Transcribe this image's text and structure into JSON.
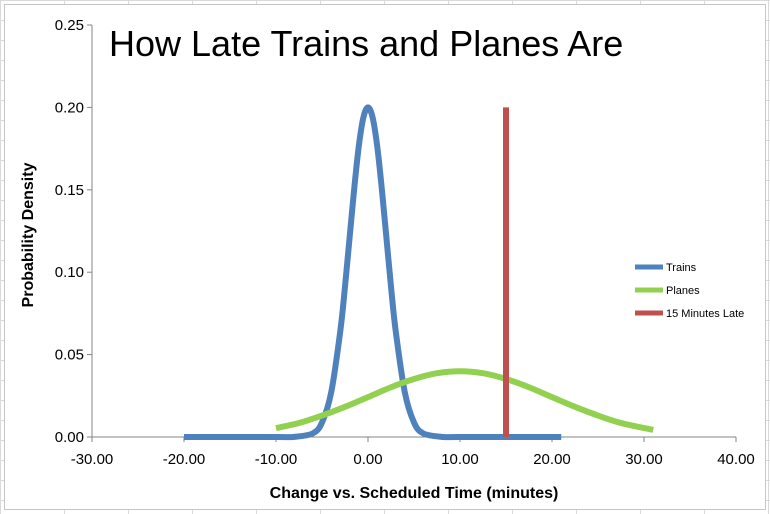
{
  "chart_data": {
    "type": "line",
    "title": "How Late Trains and Planes Are",
    "xlabel": "Change vs. Scheduled Time (minutes)",
    "ylabel": "Probability Density",
    "xlim": [
      -30,
      40
    ],
    "ylim": [
      0,
      0.25
    ],
    "x_ticks": [
      -30,
      -20,
      -10,
      0,
      10,
      20,
      30,
      40
    ],
    "x_tick_labels": [
      "-30.00",
      "-20.00",
      "-10.00",
      "0.00",
      "10.00",
      "20.00",
      "30.00",
      "40.00"
    ],
    "y_ticks": [
      0,
      0.05,
      0.1,
      0.15,
      0.2,
      0.25
    ],
    "y_tick_labels": [
      "0.00",
      "0.05",
      "0.10",
      "0.15",
      "0.20",
      "0.25"
    ],
    "grid": false,
    "legend_position": "right",
    "series": [
      {
        "name": "Trains",
        "color": "#4f81bd",
        "x": [
          -20,
          -10,
          -8,
          -6,
          -5,
          -4,
          -3,
          -2.5,
          -2,
          -1.5,
          -1,
          -0.5,
          0,
          0.5,
          1,
          1.5,
          2,
          2.5,
          3,
          4,
          5,
          6,
          8,
          10,
          21
        ],
        "y": [
          0,
          0,
          0.0001,
          0.0022,
          0.0088,
          0.0271,
          0.0648,
          0.0913,
          0.121,
          0.1506,
          0.1765,
          0.1939,
          0.2,
          0.1939,
          0.1765,
          0.1506,
          0.121,
          0.0913,
          0.0648,
          0.0271,
          0.0088,
          0.0022,
          0.0001,
          0,
          0
        ]
      },
      {
        "name": "Planes",
        "color": "#92d050",
        "x": [
          -10,
          -7.5,
          -5,
          -2.5,
          0,
          2.5,
          5,
          7.5,
          10,
          12.5,
          15,
          17.5,
          20,
          22.5,
          25,
          27.5,
          31
        ],
        "y": [
          0.0054,
          0.0085,
          0.013,
          0.0183,
          0.0242,
          0.0302,
          0.0352,
          0.0387,
          0.0399,
          0.0387,
          0.0352,
          0.0302,
          0.0242,
          0.0183,
          0.013,
          0.0085,
          0.0043
        ]
      },
      {
        "name": "15 Minutes Late",
        "color": "#c0504d",
        "x": [
          15,
          15
        ],
        "y": [
          0,
          0.2
        ]
      }
    ]
  }
}
